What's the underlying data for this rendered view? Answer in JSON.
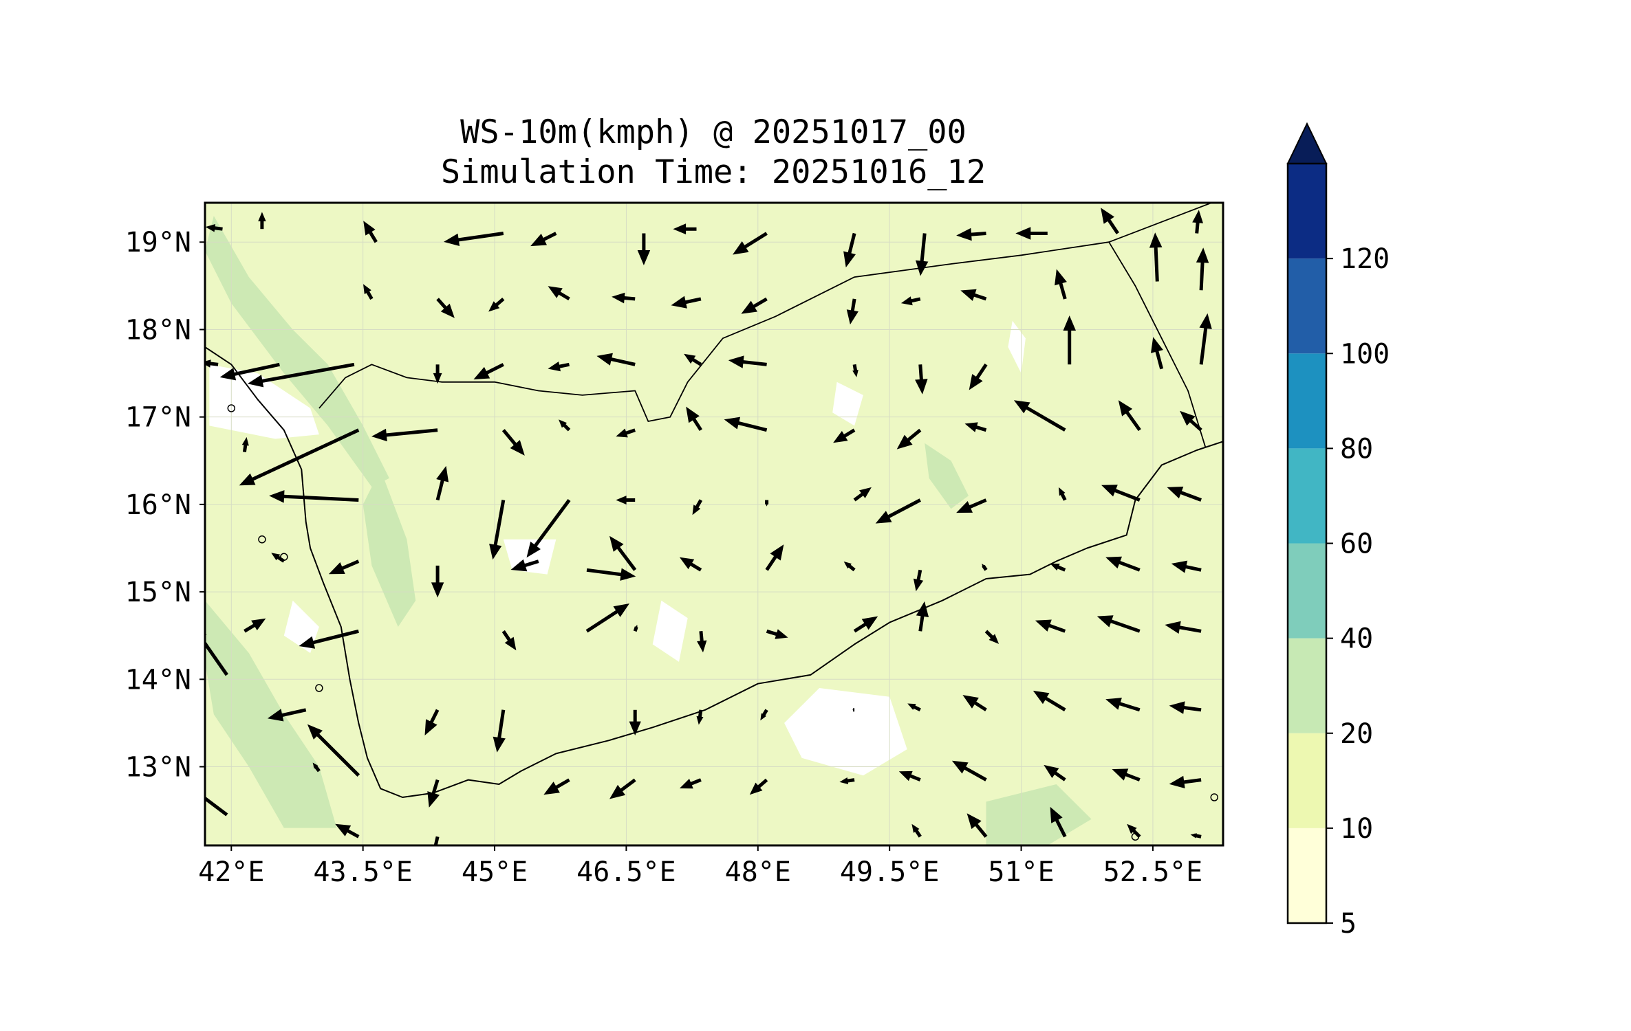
{
  "title": {
    "line1": "WS-10m(kmph) @ 20251017_00",
    "line2": "Simulation Time: 20251016_12"
  },
  "map": {
    "lon_range": [
      41.7,
      53.3
    ],
    "lat_range": [
      12.1,
      19.45
    ],
    "x_ticks": [
      {
        "value": 42.0,
        "label": "42°E"
      },
      {
        "value": 43.5,
        "label": "43.5°E"
      },
      {
        "value": 45.0,
        "label": "45°E"
      },
      {
        "value": 46.5,
        "label": "46.5°E"
      },
      {
        "value": 48.0,
        "label": "48°E"
      },
      {
        "value": 49.5,
        "label": "49.5°E"
      },
      {
        "value": 51.0,
        "label": "51°E"
      },
      {
        "value": 52.5,
        "label": "52.5°E"
      }
    ],
    "y_ticks": [
      {
        "value": 13,
        "label": "13°N"
      },
      {
        "value": 14,
        "label": "14°N"
      },
      {
        "value": 15,
        "label": "15°N"
      },
      {
        "value": 16,
        "label": "16°N"
      },
      {
        "value": 17,
        "label": "17°N"
      },
      {
        "value": 18,
        "label": "18°N"
      },
      {
        "value": 19,
        "label": "19°N"
      }
    ],
    "grid": true,
    "background_color": "#edf8c4",
    "coastline": [
      [
        41.7,
        17.8
      ],
      [
        42.0,
        17.6
      ],
      [
        42.3,
        17.2
      ],
      [
        42.6,
        16.85
      ],
      [
        42.8,
        16.4
      ],
      [
        42.85,
        15.8
      ],
      [
        42.9,
        15.5
      ],
      [
        43.05,
        15.1
      ],
      [
        43.25,
        14.6
      ],
      [
        43.35,
        14.0
      ],
      [
        43.45,
        13.5
      ],
      [
        43.55,
        13.1
      ],
      [
        43.7,
        12.75
      ],
      [
        43.95,
        12.65
      ],
      [
        44.3,
        12.7
      ],
      [
        44.7,
        12.85
      ],
      [
        45.05,
        12.8
      ],
      [
        45.3,
        12.95
      ],
      [
        45.7,
        13.15
      ],
      [
        46.3,
        13.3
      ],
      [
        46.8,
        13.45
      ],
      [
        47.4,
        13.65
      ],
      [
        48.0,
        13.95
      ],
      [
        48.6,
        14.05
      ],
      [
        49.1,
        14.4
      ],
      [
        49.5,
        14.65
      ],
      [
        50.1,
        14.9
      ],
      [
        50.6,
        15.15
      ],
      [
        51.1,
        15.2
      ],
      [
        51.4,
        15.35
      ],
      [
        51.75,
        15.5
      ],
      [
        52.2,
        15.65
      ],
      [
        52.3,
        16.05
      ],
      [
        52.6,
        16.45
      ],
      [
        53.0,
        16.62
      ],
      [
        53.3,
        16.72
      ]
    ],
    "land_borders": [
      [
        [
          43.0,
          17.1
        ],
        [
          43.3,
          17.45
        ],
        [
          43.6,
          17.6
        ],
        [
          44.0,
          17.45
        ],
        [
          44.4,
          17.4
        ],
        [
          45.0,
          17.4
        ],
        [
          45.5,
          17.3
        ],
        [
          46.0,
          17.25
        ],
        [
          46.6,
          17.3
        ],
        [
          46.75,
          16.95
        ],
        [
          47.0,
          17.0
        ],
        [
          47.2,
          17.4
        ],
        [
          47.6,
          17.9
        ],
        [
          48.2,
          18.15
        ],
        [
          49.1,
          18.6
        ],
        [
          50.2,
          18.75
        ],
        [
          51.0,
          18.85
        ],
        [
          52.0,
          19.0
        ],
        [
          53.3,
          19.5
        ]
      ],
      [
        [
          52.0,
          19.0
        ],
        [
          52.3,
          18.5
        ],
        [
          52.6,
          17.9
        ],
        [
          52.9,
          17.3
        ],
        [
          53.1,
          16.65
        ]
      ]
    ],
    "islands": [
      [
        42.0,
        17.1
      ],
      [
        42.35,
        15.6
      ],
      [
        42.6,
        15.4
      ],
      [
        43.0,
        13.9
      ],
      [
        52.3,
        12.2
      ],
      [
        53.2,
        12.65
      ]
    ],
    "land_fill_color": "#edf8c4",
    "sea_color": "#fbfdd6",
    "calm_color": "#ffffff",
    "strong_color": "#cde9b4"
  },
  "colorbar": {
    "levels": [
      "5",
      "10",
      "20",
      "40",
      "60",
      "80",
      "100",
      "120"
    ],
    "colors": [
      "#ffffd9",
      "#edf8b1",
      "#c7e9b4",
      "#7fcdbb",
      "#41b6c4",
      "#1d91c0",
      "#225ea8",
      "#0c2c84"
    ],
    "extend_color": "#081d58"
  },
  "chart_data": {
    "type": "heatmap",
    "title": "WS-10m(kmph) @ 20251017_00",
    "subtitle": "Simulation Time: 20251016_12",
    "xlabel": "",
    "ylabel": "",
    "xlim": [
      41.7,
      53.3
    ],
    "ylim": [
      12.1,
      19.45
    ],
    "colorbar_levels": [
      5,
      10,
      20,
      40,
      60,
      80,
      100,
      120
    ],
    "wind_vectors": [
      {
        "lon": 41.9,
        "lat": 19.15,
        "u": -0.4,
        "v": 0.05
      },
      {
        "lon": 42.35,
        "lat": 19.15,
        "u": 0.0,
        "v": 0.4
      },
      {
        "lon": 43.65,
        "lat": 19.0,
        "u": -0.3,
        "v": 0.5
      },
      {
        "lon": 45.1,
        "lat": 19.1,
        "u": -1.4,
        "v": -0.2
      },
      {
        "lon": 45.7,
        "lat": 19.1,
        "u": -0.6,
        "v": -0.3
      },
      {
        "lon": 46.7,
        "lat": 19.1,
        "u": 0.0,
        "v": -0.75
      },
      {
        "lon": 47.3,
        "lat": 19.15,
        "u": -0.55,
        "v": 0.0
      },
      {
        "lon": 48.1,
        "lat": 19.1,
        "u": -0.8,
        "v": -0.5
      },
      {
        "lon": 49.1,
        "lat": 19.1,
        "u": -0.2,
        "v": -0.8
      },
      {
        "lon": 49.9,
        "lat": 19.1,
        "u": -0.1,
        "v": -1.0
      },
      {
        "lon": 50.6,
        "lat": 19.1,
        "u": -0.7,
        "v": -0.05
      },
      {
        "lon": 51.3,
        "lat": 19.1,
        "u": -0.75,
        "v": 0.0
      },
      {
        "lon": 52.1,
        "lat": 19.1,
        "u": -0.4,
        "v": 0.6
      },
      {
        "lon": 52.55,
        "lat": 18.55,
        "u": -0.05,
        "v": 1.15
      },
      {
        "lon": 53.05,
        "lat": 18.45,
        "u": 0.05,
        "v": 1.0
      },
      {
        "lon": 53.0,
        "lat": 19.1,
        "u": 0.05,
        "v": 0.55
      },
      {
        "lon": 43.6,
        "lat": 18.35,
        "u": -0.2,
        "v": 0.35
      },
      {
        "lon": 44.35,
        "lat": 18.35,
        "u": 0.4,
        "v": -0.45
      },
      {
        "lon": 45.1,
        "lat": 18.35,
        "u": -0.35,
        "v": -0.3
      },
      {
        "lon": 45.85,
        "lat": 18.35,
        "u": -0.5,
        "v": 0.3
      },
      {
        "lon": 46.6,
        "lat": 18.35,
        "u": -0.55,
        "v": 0.05
      },
      {
        "lon": 47.35,
        "lat": 18.35,
        "u": -0.7,
        "v": -0.15
      },
      {
        "lon": 48.1,
        "lat": 18.35,
        "u": -0.6,
        "v": -0.35
      },
      {
        "lon": 49.1,
        "lat": 18.35,
        "u": -0.1,
        "v": -0.6
      },
      {
        "lon": 49.85,
        "lat": 18.35,
        "u": -0.45,
        "v": -0.1
      },
      {
        "lon": 50.6,
        "lat": 18.35,
        "u": -0.6,
        "v": 0.2
      },
      {
        "lon": 51.5,
        "lat": 18.35,
        "u": -0.2,
        "v": 0.7
      },
      {
        "lon": 51.55,
        "lat": 17.6,
        "u": 0.0,
        "v": 1.15
      },
      {
        "lon": 52.6,
        "lat": 17.55,
        "u": -0.2,
        "v": 0.75
      },
      {
        "lon": 53.05,
        "lat": 17.6,
        "u": 0.15,
        "v": 1.2
      },
      {
        "lon": 41.85,
        "lat": 17.6,
        "u": -0.4,
        "v": 0.05
      },
      {
        "lon": 42.55,
        "lat": 17.6,
        "u": -1.4,
        "v": -0.3
      },
      {
        "lon": 43.4,
        "lat": 17.6,
        "u": -2.5,
        "v": -0.45
      },
      {
        "lon": 44.35,
        "lat": 17.6,
        "u": 0.0,
        "v": -0.45
      },
      {
        "lon": 45.1,
        "lat": 17.6,
        "u": -0.7,
        "v": -0.35
      },
      {
        "lon": 45.85,
        "lat": 17.6,
        "u": -0.5,
        "v": -0.1
      },
      {
        "lon": 46.6,
        "lat": 17.6,
        "u": -0.9,
        "v": 0.2
      },
      {
        "lon": 47.35,
        "lat": 17.6,
        "u": -0.4,
        "v": 0.25
      },
      {
        "lon": 48.1,
        "lat": 17.6,
        "u": -0.9,
        "v": 0.1
      },
      {
        "lon": 49.1,
        "lat": 17.6,
        "u": 0.05,
        "v": -0.3
      },
      {
        "lon": 49.85,
        "lat": 17.6,
        "u": 0.05,
        "v": -0.7
      },
      {
        "lon": 50.6,
        "lat": 17.6,
        "u": -0.4,
        "v": -0.6
      },
      {
        "lon": 42.15,
        "lat": 16.6,
        "u": 0.05,
        "v": 0.35
      },
      {
        "lon": 43.45,
        "lat": 16.85,
        "u": -2.8,
        "v": -1.3
      },
      {
        "lon": 44.35,
        "lat": 16.85,
        "u": -1.55,
        "v": -0.15
      },
      {
        "lon": 45.1,
        "lat": 16.85,
        "u": 0.5,
        "v": -0.6
      },
      {
        "lon": 45.85,
        "lat": 16.85,
        "u": -0.25,
        "v": 0.25
      },
      {
        "lon": 46.6,
        "lat": 16.85,
        "u": -0.45,
        "v": -0.15
      },
      {
        "lon": 47.35,
        "lat": 16.85,
        "u": -0.35,
        "v": 0.55
      },
      {
        "lon": 48.1,
        "lat": 16.85,
        "u": -1.0,
        "v": 0.25
      },
      {
        "lon": 49.1,
        "lat": 16.85,
        "u": -0.5,
        "v": -0.3
      },
      {
        "lon": 49.85,
        "lat": 16.85,
        "u": -0.55,
        "v": -0.45
      },
      {
        "lon": 50.6,
        "lat": 16.85,
        "u": -0.5,
        "v": 0.15
      },
      {
        "lon": 51.5,
        "lat": 16.85,
        "u": -1.2,
        "v": 0.7
      },
      {
        "lon": 52.35,
        "lat": 16.85,
        "u": -0.5,
        "v": 0.7
      },
      {
        "lon": 53.05,
        "lat": 16.85,
        "u": -0.5,
        "v": 0.45
      },
      {
        "lon": 43.45,
        "lat": 16.05,
        "u": -2.1,
        "v": 0.1
      },
      {
        "lon": 44.35,
        "lat": 16.05,
        "u": 0.2,
        "v": 0.8
      },
      {
        "lon": 45.1,
        "lat": 16.05,
        "u": -0.25,
        "v": -1.4
      },
      {
        "lon": 45.85,
        "lat": 16.05,
        "u": -1.0,
        "v": -1.35
      },
      {
        "lon": 46.6,
        "lat": 16.05,
        "u": -0.45,
        "v": 0.0
      },
      {
        "lon": 47.35,
        "lat": 16.05,
        "u": -0.2,
        "v": -0.35
      },
      {
        "lon": 48.1,
        "lat": 16.05,
        "u": 0.0,
        "v": -0.15
      },
      {
        "lon": 49.1,
        "lat": 16.05,
        "u": 0.4,
        "v": 0.3
      },
      {
        "lon": 49.85,
        "lat": 16.05,
        "u": -1.05,
        "v": -0.55
      },
      {
        "lon": 50.6,
        "lat": 16.05,
        "u": -0.7,
        "v": -0.3
      },
      {
        "lon": 51.5,
        "lat": 16.05,
        "u": -0.15,
        "v": 0.3
      },
      {
        "lon": 52.35,
        "lat": 16.05,
        "u": -0.9,
        "v": 0.35
      },
      {
        "lon": 53.05,
        "lat": 16.05,
        "u": -0.8,
        "v": 0.3
      },
      {
        "lon": 42.6,
        "lat": 15.35,
        "u": -0.3,
        "v": 0.2
      },
      {
        "lon": 43.45,
        "lat": 15.35,
        "u": -0.7,
        "v": -0.3
      },
      {
        "lon": 44.35,
        "lat": 15.3,
        "u": 0.0,
        "v": -0.75
      },
      {
        "lon": 45.5,
        "lat": 15.35,
        "u": -0.65,
        "v": -0.2
      },
      {
        "lon": 46.05,
        "lat": 15.25,
        "u": 1.15,
        "v": -0.15
      },
      {
        "lon": 46.6,
        "lat": 15.25,
        "u": -0.6,
        "v": 0.8
      },
      {
        "lon": 47.35,
        "lat": 15.25,
        "u": -0.5,
        "v": 0.3
      },
      {
        "lon": 48.1,
        "lat": 15.25,
        "u": 0.4,
        "v": 0.6
      },
      {
        "lon": 49.1,
        "lat": 15.25,
        "u": -0.25,
        "v": 0.2
      },
      {
        "lon": 49.85,
        "lat": 15.25,
        "u": -0.1,
        "v": -0.5
      },
      {
        "lon": 50.6,
        "lat": 15.25,
        "u": -0.1,
        "v": 0.15
      },
      {
        "lon": 51.5,
        "lat": 15.25,
        "u": -0.35,
        "v": 0.15
      },
      {
        "lon": 52.35,
        "lat": 15.25,
        "u": -0.8,
        "v": 0.3
      },
      {
        "lon": 53.05,
        "lat": 15.25,
        "u": -0.7,
        "v": 0.15
      },
      {
        "lon": 42.15,
        "lat": 14.55,
        "u": 0.5,
        "v": 0.3
      },
      {
        "lon": 41.95,
        "lat": 14.05,
        "u": -0.8,
        "v": 1.15
      },
      {
        "lon": 43.45,
        "lat": 14.55,
        "u": -1.4,
        "v": -0.35
      },
      {
        "lon": 45.1,
        "lat": 14.55,
        "u": 0.3,
        "v": -0.45
      },
      {
        "lon": 46.05,
        "lat": 14.55,
        "u": 1.0,
        "v": 0.65
      },
      {
        "lon": 46.6,
        "lat": 14.55,
        "u": 0.05,
        "v": 0.15
      },
      {
        "lon": 47.35,
        "lat": 14.55,
        "u": 0.05,
        "v": -0.5
      },
      {
        "lon": 48.1,
        "lat": 14.55,
        "u": 0.5,
        "v": -0.15
      },
      {
        "lon": 49.1,
        "lat": 14.55,
        "u": 0.55,
        "v": 0.35
      },
      {
        "lon": 49.85,
        "lat": 14.55,
        "u": 0.1,
        "v": 0.7
      },
      {
        "lon": 50.6,
        "lat": 14.55,
        "u": 0.3,
        "v": -0.3
      },
      {
        "lon": 51.5,
        "lat": 14.55,
        "u": -0.7,
        "v": 0.25
      },
      {
        "lon": 52.35,
        "lat": 14.55,
        "u": -1.0,
        "v": 0.35
      },
      {
        "lon": 53.05,
        "lat": 14.55,
        "u": -0.85,
        "v": 0.15
      },
      {
        "lon": 42.85,
        "lat": 13.65,
        "u": -0.9,
        "v": -0.2
      },
      {
        "lon": 43.45,
        "lat": 12.9,
        "u": -1.2,
        "v": 1.2
      },
      {
        "lon": 44.35,
        "lat": 13.65,
        "u": -0.3,
        "v": -0.6
      },
      {
        "lon": 45.1,
        "lat": 13.65,
        "u": -0.15,
        "v": -1.0
      },
      {
        "lon": 46.6,
        "lat": 13.65,
        "u": 0.0,
        "v": -0.6
      },
      {
        "lon": 47.35,
        "lat": 13.65,
        "u": -0.05,
        "v": -0.35
      },
      {
        "lon": 48.1,
        "lat": 13.65,
        "u": -0.15,
        "v": -0.25
      },
      {
        "lon": 49.1,
        "lat": 13.65,
        "u": -0.05,
        "v": 0.0
      },
      {
        "lon": 49.85,
        "lat": 13.65,
        "u": -0.3,
        "v": 0.15
      },
      {
        "lon": 50.6,
        "lat": 13.65,
        "u": -0.55,
        "v": 0.35
      },
      {
        "lon": 51.5,
        "lat": 13.65,
        "u": -0.75,
        "v": 0.45
      },
      {
        "lon": 52.35,
        "lat": 13.65,
        "u": -0.8,
        "v": 0.25
      },
      {
        "lon": 53.05,
        "lat": 13.65,
        "u": -0.75,
        "v": 0.1
      },
      {
        "lon": 43.0,
        "lat": 12.95,
        "u": -0.15,
        "v": 0.2
      },
      {
        "lon": 44.35,
        "lat": 12.85,
        "u": -0.2,
        "v": -0.65
      },
      {
        "lon": 45.85,
        "lat": 12.85,
        "u": -0.6,
        "v": -0.35
      },
      {
        "lon": 46.6,
        "lat": 12.85,
        "u": -0.6,
        "v": -0.45
      },
      {
        "lon": 47.35,
        "lat": 12.85,
        "u": -0.5,
        "v": -0.2
      },
      {
        "lon": 48.1,
        "lat": 12.85,
        "u": -0.4,
        "v": -0.35
      },
      {
        "lon": 49.1,
        "lat": 12.85,
        "u": -0.35,
        "v": -0.05
      },
      {
        "lon": 49.85,
        "lat": 12.85,
        "u": -0.5,
        "v": 0.2
      },
      {
        "lon": 50.6,
        "lat": 12.85,
        "u": -0.8,
        "v": 0.45
      },
      {
        "lon": 51.5,
        "lat": 12.85,
        "u": -0.5,
        "v": 0.35
      },
      {
        "lon": 52.35,
        "lat": 12.85,
        "u": -0.65,
        "v": 0.25
      },
      {
        "lon": 53.05,
        "lat": 12.85,
        "u": -0.75,
        "v": -0.1
      },
      {
        "lon": 41.95,
        "lat": 12.45,
        "u": -1.0,
        "v": 0.75
      },
      {
        "lon": 43.45,
        "lat": 12.2,
        "u": -0.55,
        "v": 0.3
      },
      {
        "lon": 44.35,
        "lat": 12.2,
        "u": -0.1,
        "v": -0.45
      },
      {
        "lon": 49.85,
        "lat": 12.2,
        "u": -0.2,
        "v": 0.3
      },
      {
        "lon": 50.6,
        "lat": 12.2,
        "u": -0.45,
        "v": 0.55
      },
      {
        "lon": 51.5,
        "lat": 12.2,
        "u": -0.35,
        "v": 0.7
      },
      {
        "lon": 52.35,
        "lat": 12.2,
        "u": -0.3,
        "v": 0.3
      },
      {
        "lon": 53.05,
        "lat": 12.2,
        "u": -0.25,
        "v": 0.05
      }
    ]
  }
}
